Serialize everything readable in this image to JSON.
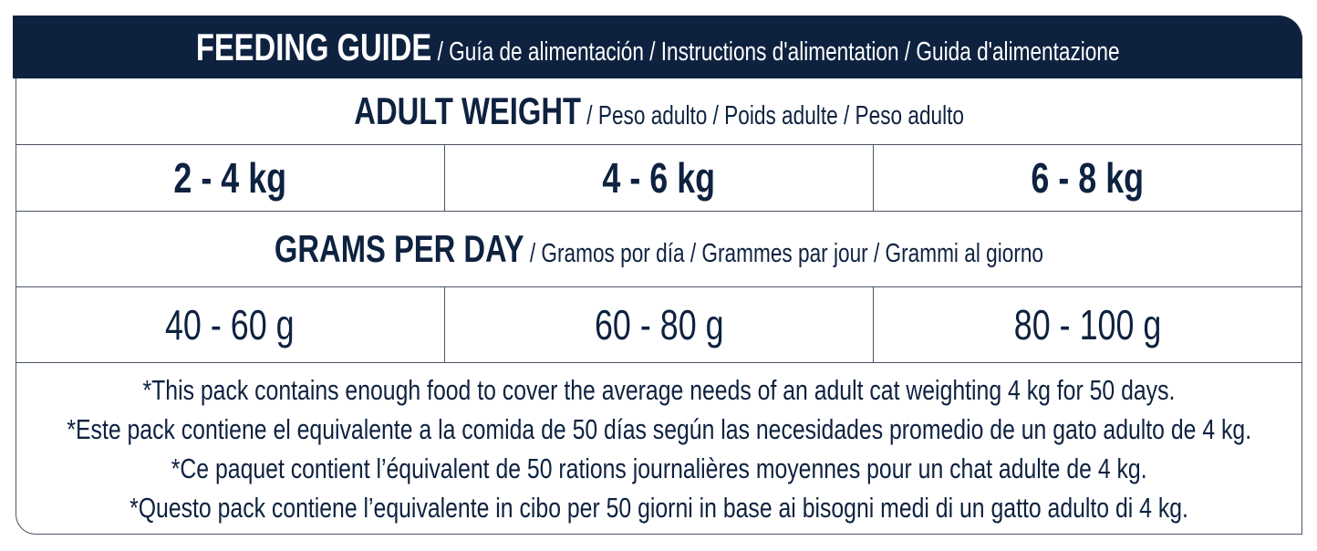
{
  "header": {
    "title": "FEEDING GUIDE",
    "subtitle": " / Guía de alimentación / Instructions d'alimentation / Guida d'alimentazione"
  },
  "adult_weight": {
    "title": "ADULT WEIGHT",
    "subtitle": " / Peso adulto / Poids adulte / Peso adulto"
  },
  "weights": [
    "2 - 4 kg",
    "4 - 6 kg",
    "6 - 8 kg"
  ],
  "grams_per_day": {
    "title": "GRAMS PER DAY",
    "subtitle": " / Gramos por día / Grammes par jour / Grammi al giorno"
  },
  "grams": [
    "40 - 60 g",
    "60 - 80 g",
    "80 - 100 g"
  ],
  "notes": [
    "*This pack contains enough food to cover the average needs of an adult cat weighting 4 kg for 50 days.",
    "*Este pack contiene el equivalente a la comida de 50 días según las necesidades promedio de un gato adulto de 4 kg.",
    "*Ce paquet contient l’équivalent de 50 rations journalières moyennes pour un chat adulte de 4 kg.",
    "*Questo pack contiene l’equivalente in cibo per 50 giorni in base ai bisogni medi di un gatto adulto di 4 kg."
  ],
  "colors": {
    "navy": "#0e2240",
    "border": "#4a5566"
  }
}
